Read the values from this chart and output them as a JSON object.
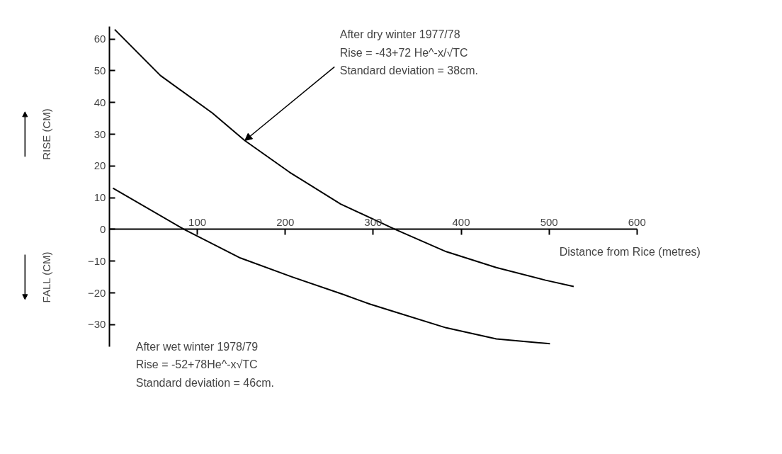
{
  "chart_data": {
    "type": "line",
    "xlabel": "Distance from Rice (metres)",
    "ylabel": "RISE (CM)",
    "xlim": [
      0,
      600
    ],
    "ylim": [
      -37,
      64
    ],
    "xticks": [
      100,
      200,
      300,
      400,
      500,
      600
    ],
    "yticks": [
      -30,
      -20,
      -10,
      0,
      10,
      20,
      30,
      40,
      50,
      60
    ],
    "grid": false,
    "series": [
      {
        "color": "#000000",
        "x": [
          6,
          58,
          117,
          154,
          205,
          263,
          325,
          383,
          440,
          496,
          528
        ],
        "values": [
          63,
          48.5,
          36.7,
          28,
          18,
          8,
          0,
          -7,
          -12,
          -16,
          -18
        ]
      },
      {
        "color": "#000000",
        "x": [
          4,
          85,
          149,
          208,
          266,
          296,
          325,
          383,
          440,
          501
        ],
        "values": [
          13,
          0,
          -9,
          -15,
          -20.5,
          -23.5,
          -26,
          -31,
          -34.5,
          -36
        ]
      }
    ],
    "annotations": [
      {
        "text": "After dry winter 1977/78\nRise = -43+72 He^-x/√TC\nStandard deviation = 38cm.",
        "x": 154,
        "y": 28
      },
      "After wet winter 1978/79\nRise = -52+78He^-x√TC\nStandard deviation = 46cm.",
      "FALL (CM)"
    ]
  }
}
